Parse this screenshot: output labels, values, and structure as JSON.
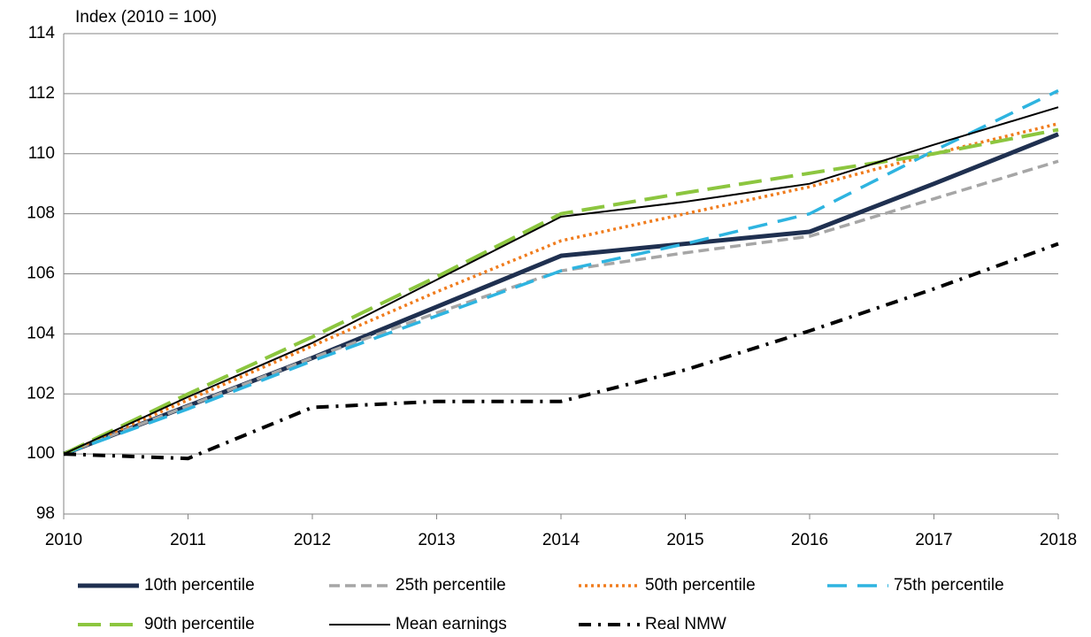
{
  "chart_data": {
    "type": "line",
    "y_label": "Index (2010 = 100)",
    "x": [
      2010,
      2011,
      2012,
      2013,
      2014,
      2015,
      2016,
      2017,
      2018
    ],
    "xlim": [
      2010,
      2018
    ],
    "xticks": [
      2010,
      2011,
      2012,
      2013,
      2014,
      2015,
      2016,
      2017,
      2018
    ],
    "ylim": [
      98,
      114
    ],
    "yticks": [
      98,
      100,
      102,
      104,
      106,
      108,
      110,
      112,
      114
    ],
    "grid": true,
    "legend": "bottom",
    "series": [
      {
        "name": "10th percentile",
        "color": "#1f3050",
        "values": [
          100,
          101.6,
          103.2,
          104.9,
          106.6,
          107.0,
          107.4,
          109.0,
          110.65
        ]
      },
      {
        "name": "25th percentile",
        "color": "#a6a6a6",
        "values": [
          100,
          101.6,
          103.2,
          104.7,
          106.1,
          106.7,
          107.25,
          108.5,
          109.75
        ]
      },
      {
        "name": "50th percentile",
        "color": "#f07c1d",
        "values": [
          100,
          101.8,
          103.6,
          105.4,
          107.1,
          108.0,
          108.9,
          110.0,
          111.0
        ]
      },
      {
        "name": "75th percentile",
        "color": "#2eb4e0",
        "values": [
          100,
          101.5,
          103.1,
          104.6,
          106.1,
          107.0,
          108.0,
          110.1,
          112.1
        ]
      },
      {
        "name": "90th percentile",
        "color": "#8cc63f",
        "values": [
          100,
          102.0,
          103.9,
          105.9,
          108.0,
          108.7,
          109.35,
          110.0,
          110.8
        ]
      },
      {
        "name": "Mean earnings",
        "color": "#000000",
        "values": [
          100,
          101.9,
          103.7,
          105.8,
          107.9,
          108.4,
          109.0,
          110.3,
          111.55
        ]
      },
      {
        "name": "Real NMW",
        "color": "#000000",
        "values": [
          100,
          99.85,
          101.55,
          101.75,
          101.75,
          102.8,
          104.1,
          105.5,
          107.0
        ]
      }
    ]
  }
}
